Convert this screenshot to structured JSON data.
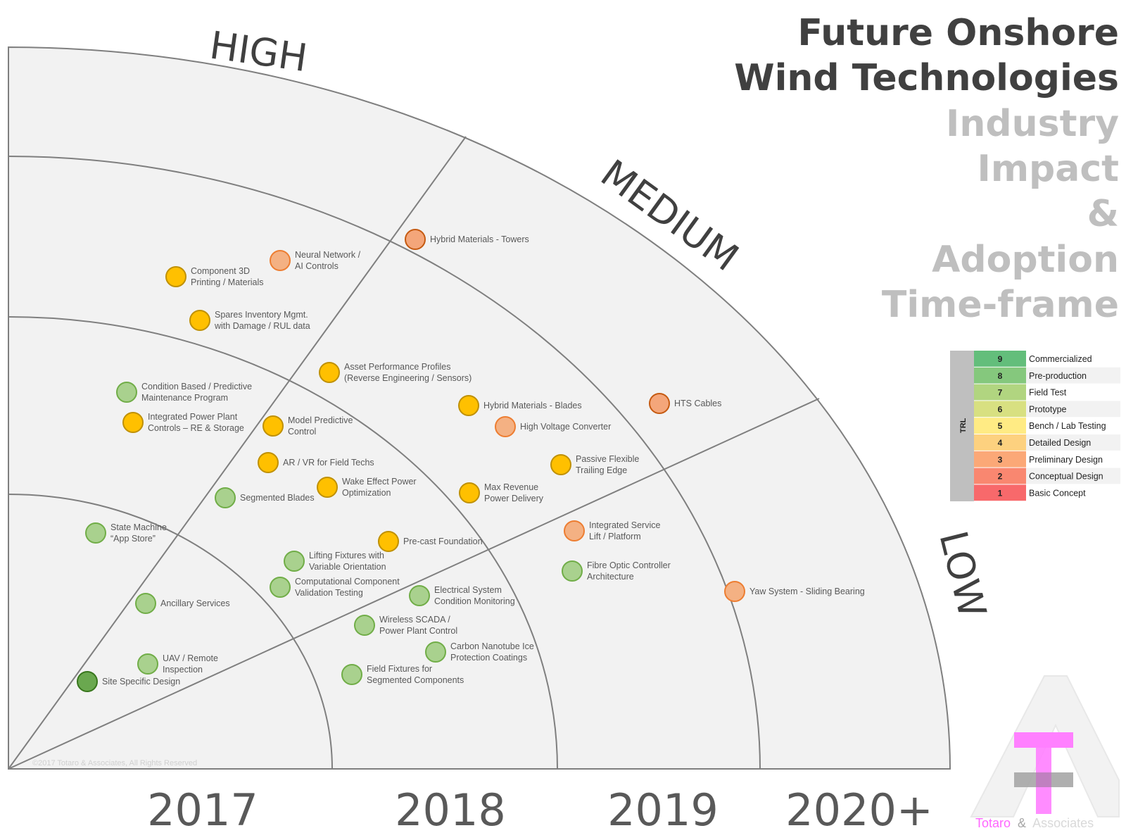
{
  "title": {
    "line1": "Future Onshore",
    "line2": "Wind Technologies",
    "line3": "Industry",
    "line4": "Impact",
    "line5": "&",
    "line6": "Adoption",
    "line7": "Time-frame"
  },
  "bands": {
    "high": "HIGH",
    "medium": "MEDIUM",
    "low": "LOW"
  },
  "years": [
    "2017",
    "2018",
    "2019",
    "2020+"
  ],
  "copyright": "©2017 Totaro & Associates, All Rights Reserved",
  "trl_legend": {
    "side_label": "TRL",
    "levels": [
      {
        "num": "9",
        "label": "Commercialized",
        "color": "#63be7b"
      },
      {
        "num": "8",
        "label": "Pre-production",
        "color": "#85c87d"
      },
      {
        "num": "7",
        "label": "Field Test",
        "color": "#b1d580"
      },
      {
        "num": "6",
        "label": "Prototype",
        "color": "#d8e081"
      },
      {
        "num": "5",
        "label": "Bench / Lab Testing",
        "color": "#ffeb84"
      },
      {
        "num": "4",
        "label": "Detailed Design",
        "color": "#fdd17f"
      },
      {
        "num": "3",
        "label": "Preliminary Design",
        "color": "#fba877"
      },
      {
        "num": "2",
        "label": "Conceptual Design",
        "color": "#f98770"
      },
      {
        "num": "1",
        "label": "Basic Concept",
        "color": "#f8696b"
      }
    ]
  },
  "technologies": [
    {
      "lines": [
        "Hybrid Materials - Towers"
      ],
      "trl": "3-dark"
    },
    {
      "lines": [
        "Neural Network /",
        "AI Controls"
      ],
      "trl": "3"
    },
    {
      "lines": [
        "Component 3D",
        "Printing / Materials"
      ],
      "trl": "5"
    },
    {
      "lines": [
        "Spares Inventory Mgmt.",
        "with Damage / RUL data"
      ],
      "trl": "5"
    },
    {
      "lines": [
        "Asset Performance Profiles",
        "(Reverse Engineering / Sensors)"
      ],
      "trl": "5"
    },
    {
      "lines": [
        "Condition Based  / Predictive",
        "Maintenance Program"
      ],
      "trl": "7"
    },
    {
      "lines": [
        "Integrated Power Plant",
        "Controls – RE & Storage"
      ],
      "trl": "5"
    },
    {
      "lines": [
        "Model Predictive",
        "Control"
      ],
      "trl": "5"
    },
    {
      "lines": [
        "Hybrid Materials - Blades"
      ],
      "trl": "5"
    },
    {
      "lines": [
        "High Voltage Converter"
      ],
      "trl": "3"
    },
    {
      "lines": [
        "HTS Cables"
      ],
      "trl": "3-dark"
    },
    {
      "lines": [
        "AR / VR for Field Techs"
      ],
      "trl": "5"
    },
    {
      "lines": [
        "Passive Flexible",
        "Trailing Edge"
      ],
      "trl": "5"
    },
    {
      "lines": [
        "Segmented Blades"
      ],
      "trl": "7"
    },
    {
      "lines": [
        "Wake Effect Power",
        "Optimization"
      ],
      "trl": "5"
    },
    {
      "lines": [
        "Max Revenue",
        "Power Delivery"
      ],
      "trl": "5"
    },
    {
      "lines": [
        "State Machine",
        "“App Store”"
      ],
      "trl": "7"
    },
    {
      "lines": [
        "Integrated Service",
        "Lift / Platform"
      ],
      "trl": "3"
    },
    {
      "lines": [
        "Pre-cast Foundation"
      ],
      "trl": "5"
    },
    {
      "lines": [
        "Lifting Fixtures with",
        "Variable Orientation"
      ],
      "trl": "7"
    },
    {
      "lines": [
        "Fibre Optic Controller",
        "Architecture"
      ],
      "trl": "7"
    },
    {
      "lines": [
        "Computational Component",
        "Validation Testing"
      ],
      "trl": "7"
    },
    {
      "lines": [
        "Electrical System",
        "Condition Monitoring"
      ],
      "trl": "7"
    },
    {
      "lines": [
        "Yaw System - Sliding Bearing"
      ],
      "trl": "3"
    },
    {
      "lines": [
        "Ancillary Services"
      ],
      "trl": "7"
    },
    {
      "lines": [
        "Wireless SCADA /",
        "Power Plant Control"
      ],
      "trl": "7"
    },
    {
      "lines": [
        "Carbon Nanotube Ice",
        "Protection Coatings"
      ],
      "trl": "7"
    },
    {
      "lines": [
        "UAV / Remote",
        "Inspection"
      ],
      "trl": "7"
    },
    {
      "lines": [
        "Field Fixtures for",
        "Segmented Components"
      ],
      "trl": "7"
    },
    {
      "lines": [
        "Site Specific Design"
      ],
      "trl": "9"
    }
  ],
  "trl_marker_colors": {
    "9": {
      "fill": "#6aa84f",
      "stroke": "#38761d"
    },
    "7": {
      "fill": "#a9d18e",
      "stroke": "#70ad47"
    },
    "5": {
      "fill": "#ffc000",
      "stroke": "#bf9000"
    },
    "3": {
      "fill": "#f4b183",
      "stroke": "#ed7d31"
    },
    "3-dark": {
      "fill": "#f4a67a",
      "stroke": "#c55a11"
    }
  },
  "logo": {
    "word1": "Totaro",
    "amp": "&",
    "word2": "Associates",
    "pink": "#ff66ff",
    "gray": "#a6a6a6"
  }
}
